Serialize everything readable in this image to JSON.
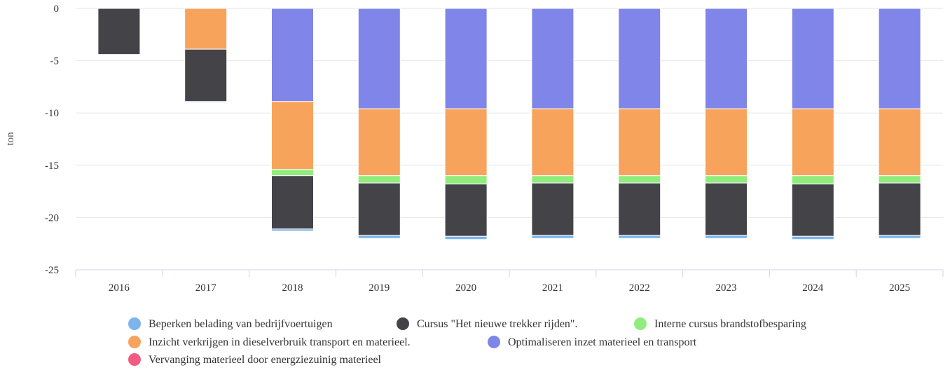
{
  "chart_data": {
    "type": "bar",
    "stacked": true,
    "ylabel": "ton",
    "ylim": [
      -25,
      0
    ],
    "yticks": [
      0,
      -5,
      -10,
      -15,
      -20,
      -25
    ],
    "grid": true,
    "legend_position": "bottom",
    "categories": [
      "2016",
      "2017",
      "2018",
      "2019",
      "2020",
      "2021",
      "2022",
      "2023",
      "2024",
      "2025"
    ],
    "series": [
      {
        "name": "Beperken belading van bedrijfvoertuigen",
        "color": "#7cb5ec",
        "values": [
          0,
          -0.1,
          -0.2,
          -0.3,
          -0.3,
          -0.3,
          -0.3,
          -0.3,
          -0.3,
          -0.3
        ]
      },
      {
        "name": "Cursus \"Het nieuwe trekker rijden\".",
        "color": "#434348",
        "values": [
          -4.4,
          -5.0,
          -5.1,
          -5.0,
          -5.0,
          -5.0,
          -5.0,
          -5.0,
          -5.0,
          -5.0
        ]
      },
      {
        "name": "Interne cursus brandstofbesparing",
        "color": "#90ed7d",
        "values": [
          0,
          0,
          -0.6,
          -0.7,
          -0.8,
          -0.7,
          -0.7,
          -0.7,
          -0.8,
          -0.7
        ]
      },
      {
        "name": "Inzicht verkrijgen in dieselverbruik transport en materieel.",
        "color": "#f7a35c",
        "values": [
          0,
          -3.9,
          -6.5,
          -6.4,
          -6.4,
          -6.4,
          -6.4,
          -6.4,
          -6.4,
          -6.4
        ]
      },
      {
        "name": "Optimaliseren inzet materieel en transport",
        "color": "#8085e9",
        "values": [
          0,
          0,
          -8.9,
          -9.6,
          -9.6,
          -9.6,
          -9.6,
          -9.6,
          -9.6,
          -9.6
        ]
      },
      {
        "name": "Vervanging materieel door energziezuinig materieel",
        "color": "#f15c80",
        "values": [
          0,
          0,
          0,
          0,
          0,
          0,
          0,
          0,
          0,
          0
        ]
      }
    ]
  }
}
